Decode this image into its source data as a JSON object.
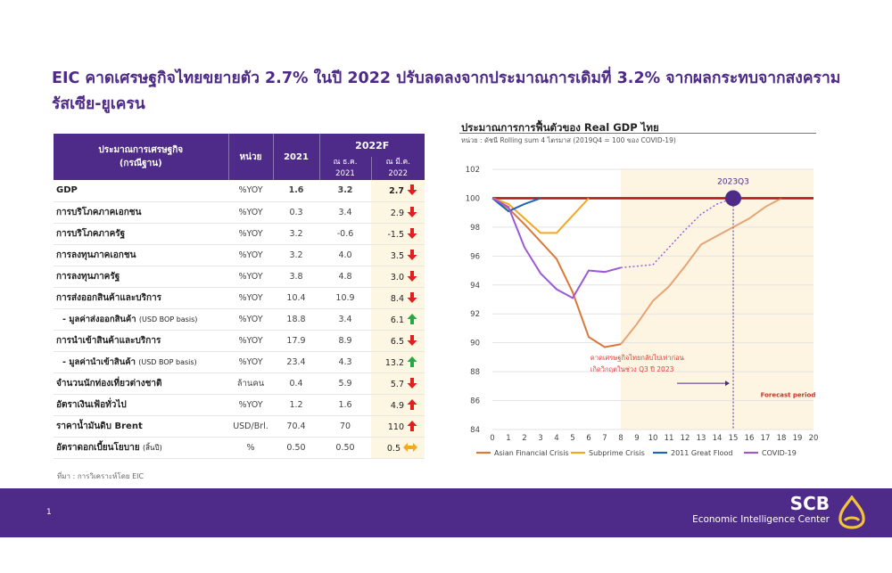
{
  "headline": {
    "line1": "EIC คาดเศรษฐกิจไทยขยายตัว 2.7% ในปี 2022 ปรับลดลงจากประมาณการเดิมที่ 3.2% จากผลกระทบจากสงคราม",
    "line2": "รัสเซีย-ยูเครน"
  },
  "table": {
    "header": {
      "col1_line1": "ประมาณการเศรษฐกิจ",
      "col1_line2": "(กรณีฐาน)",
      "unit": "หน่วย",
      "y2021": "2021",
      "forecast": "2022F",
      "dec_line1": "ณ ธ.ค.",
      "dec_line2": "2021",
      "mar_line1": "ณ มี.ค.",
      "mar_line2": "2022"
    },
    "rows": [
      {
        "label": "GDP",
        "note": "",
        "unit": "%YOY",
        "v2021": "1.6",
        "dec": "3.2",
        "mar": "2.7",
        "arrow": "down-red"
      },
      {
        "label": "การบริโภคภาคเอกชน",
        "note": "",
        "unit": "%YOY",
        "v2021": "0.3",
        "dec": "3.4",
        "mar": "2.9",
        "arrow": "down-red"
      },
      {
        "label": "การบริโภคภาครัฐ",
        "note": "",
        "unit": "%YOY",
        "v2021": "3.2",
        "dec": "-0.6",
        "mar": "-1.5",
        "arrow": "down-red"
      },
      {
        "label": "การลงทุนภาคเอกชน",
        "note": "",
        "unit": "%YOY",
        "v2021": "3.2",
        "dec": "4.0",
        "mar": "3.5",
        "arrow": "down-red"
      },
      {
        "label": "การลงทุนภาครัฐ",
        "note": "",
        "unit": "%YOY",
        "v2021": "3.8",
        "dec": "4.8",
        "mar": "3.0",
        "arrow": "down-red"
      },
      {
        "label": "การส่งออกสินค้าและบริการ",
        "note": "",
        "unit": "%YOY",
        "v2021": "10.4",
        "dec": "10.9",
        "mar": "8.4",
        "arrow": "down-red"
      },
      {
        "label": "- มูลค่าส่งออกสินค้า",
        "note": "(USD BOP basis)",
        "unit": "%YOY",
        "v2021": "18.8",
        "dec": "3.4",
        "mar": "6.1",
        "arrow": "up-green"
      },
      {
        "label": "การนำเข้าสินค้าและบริการ",
        "note": "",
        "unit": "%YOY",
        "v2021": "17.9",
        "dec": "8.9",
        "mar": "6.5",
        "arrow": "down-red"
      },
      {
        "label": "- มูลค่านำเข้าสินค้า",
        "note": "(USD BOP basis)",
        "unit": "%YOY",
        "v2021": "23.4",
        "dec": "4.3",
        "mar": "13.2",
        "arrow": "up-green"
      },
      {
        "label": "จำนวนนักท่องเที่ยวต่างชาติ",
        "note": "",
        "unit": "ล้านคน",
        "v2021": "0.4",
        "dec": "5.9",
        "mar": "5.7",
        "arrow": "down-red"
      },
      {
        "label": "อัตราเงินเฟ้อทั่วไป",
        "note": "",
        "unit": "%YOY",
        "v2021": "1.2",
        "dec": "1.6",
        "mar": "4.9",
        "arrow": "up-red"
      },
      {
        "label": "ราคาน้ำมันดิบ Brent",
        "note": "",
        "unit": "USD/Brl.",
        "v2021": "70.4",
        "dec": "70",
        "mar": "110",
        "arrow": "up-red"
      },
      {
        "label": "อัตราดอกเบี้ยนโยบาย",
        "note": "(สิ้นปี)",
        "unit": "%",
        "v2021": "0.50",
        "dec": "0.50",
        "mar": "0.5",
        "arrow": "flat-orange"
      }
    ]
  },
  "source": "ที่มา : การวิเคราะห์โดย EIC",
  "chart_data": {
    "type": "line",
    "title": "ประมาณการการฟื้นตัวของ Real GDP ไทย",
    "subtitle": "หน่วย : ดัชนี Rolling sum 4 ไตรมาส (2019Q4 = 100 ของ COVID-19)",
    "xlabel": "",
    "ylabel": "",
    "x_ticks": [
      0,
      1,
      2,
      3,
      4,
      5,
      6,
      7,
      8,
      9,
      10,
      11,
      12,
      13,
      14,
      15,
      16,
      17,
      18,
      19,
      20
    ],
    "ylim": [
      84,
      102
    ],
    "y_ticks": [
      84,
      86,
      88,
      90,
      92,
      94,
      96,
      98,
      100,
      102
    ],
    "xlim": [
      0,
      20
    ],
    "baseline": 100,
    "baseline_color": "#b71c1c",
    "forecast_from_x": 8,
    "forecast_label": "Forecast period",
    "marker": {
      "label": "2023Q3",
      "x": 15,
      "y": 100
    },
    "annotation": {
      "line1": "คาดเศรษฐกิจไทยกลับไปเท่าก่อน",
      "line2": "เกิดวิกฤตในช่วง Q3 ปี 2023"
    },
    "series": [
      {
        "name": "Asian Financial Crisis",
        "color": "#d9783b",
        "x": [
          0,
          1,
          2,
          3,
          4,
          5,
          6,
          7,
          8,
          9,
          10,
          11,
          12,
          13,
          14,
          15,
          16,
          17,
          18
        ],
        "y": [
          100,
          99.3,
          98.2,
          97,
          95.8,
          93.5,
          90.4,
          89.7,
          89.9,
          91.3,
          92.9,
          93.9,
          95.3,
          96.8,
          97.4,
          98,
          98.6,
          99.4,
          100
        ],
        "forecast_from": 8
      },
      {
        "name": "Subprime Crisis",
        "color": "#f5a623",
        "x": [
          0,
          1,
          2,
          3,
          4,
          5,
          6
        ],
        "y": [
          100,
          99.6,
          98.6,
          97.6,
          97.6,
          98.8,
          100
        ]
      },
      {
        "name": "2011 Great Flood",
        "color": "#1f66b1",
        "x": [
          0,
          1,
          2,
          3
        ],
        "y": [
          100,
          99.1,
          99.6,
          100
        ]
      },
      {
        "name": "COVID-19",
        "color": "#9b59d6",
        "x": [
          0,
          1,
          2,
          3,
          4,
          5,
          6,
          7,
          8,
          9,
          10,
          11,
          12,
          13,
          14,
          15
        ],
        "y": [
          100,
          99.4,
          96.6,
          94.8,
          93.7,
          93.1,
          95,
          94.9,
          95.2,
          95.3,
          95.4,
          96.6,
          97.8,
          98.9,
          99.6,
          100
        ],
        "forecast_from": 8
      }
    ],
    "legend_position": "bottom"
  },
  "footer": {
    "page": "1",
    "brand": "SCB",
    "brand_sub": "Economic Intelligence Center"
  },
  "colors": {
    "purple": "#4e2b88",
    "highlight": "#fdf6e3",
    "down_red": "#e02020",
    "up_green": "#27a745",
    "flat_orange": "#f5a623"
  }
}
